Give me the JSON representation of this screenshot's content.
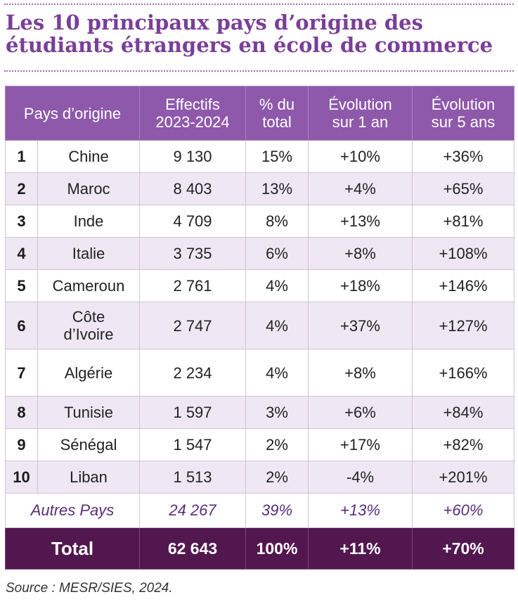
{
  "title": "Les 10 principaux pays d’origine des étudiants étrangers en école de commerce",
  "headers": {
    "country": "Pays d’origine",
    "effectifs_line1": "Effectifs",
    "effectifs_line2": "2023-2024",
    "pct_line1": "% du",
    "pct_line2": "total",
    "evo1_line1": "Évolution",
    "evo1_line2": "sur 1 an",
    "evo5_line1": "Évolution",
    "evo5_line2": "sur 5 ans"
  },
  "rows": [
    {
      "rank": "1",
      "country": "Chine",
      "effectifs": "9 130",
      "pct": "15%",
      "evo1": "+10%",
      "evo5": "+36%"
    },
    {
      "rank": "2",
      "country": "Maroc",
      "effectifs": "8 403",
      "pct": "13%",
      "evo1": "+4%",
      "evo5": "+65%"
    },
    {
      "rank": "3",
      "country": "Inde",
      "effectifs": "4 709",
      "pct": "8%",
      "evo1": "+13%",
      "evo5": "+81%"
    },
    {
      "rank": "4",
      "country": "Italie",
      "effectifs": "3 735",
      "pct": "6%",
      "evo1": "+8%",
      "evo5": "+108%"
    },
    {
      "rank": "5",
      "country": "Cameroun",
      "effectifs": "2 761",
      "pct": "4%",
      "evo1": "+18%",
      "evo5": "+146%"
    },
    {
      "rank": "6",
      "country_line1": "Côte",
      "country_line2": "d’Ivoire",
      "effectifs": "2 747",
      "pct": "4%",
      "evo1": "+37%",
      "evo5": "+127%"
    },
    {
      "rank": "7",
      "country": "Algérie",
      "effectifs": "2 234",
      "pct": "4%",
      "evo1": "+8%",
      "evo5": "+166%"
    },
    {
      "rank": "8",
      "country": "Tunisie",
      "effectifs": "1 597",
      "pct": "3%",
      "evo1": "+6%",
      "evo5": "+84%"
    },
    {
      "rank": "9",
      "country": "Sénégal",
      "effectifs": "1 547",
      "pct": "2%",
      "evo1": "+17%",
      "evo5": "+82%"
    },
    {
      "rank": "10",
      "country": "Liban",
      "effectifs": "1 513",
      "pct": "2%",
      "evo1": "-4%",
      "evo5": "+201%"
    }
  ],
  "others": {
    "label": "Autres Pays",
    "effectifs": "24 267",
    "pct": "39%",
    "evo1": "+13%",
    "evo5": "+60%"
  },
  "total": {
    "label": "Total",
    "effectifs": "62 643",
    "pct": "100%",
    "evo1": "+11%",
    "evo5": "+70%"
  },
  "source": "Source : MESR/SIES, 2024.",
  "colors": {
    "title": "#7a3f98",
    "header_bg": "#8e59ab",
    "row_alt": "#efe8f4",
    "total_bg": "#52174f",
    "others_text": "#5a2d78"
  }
}
